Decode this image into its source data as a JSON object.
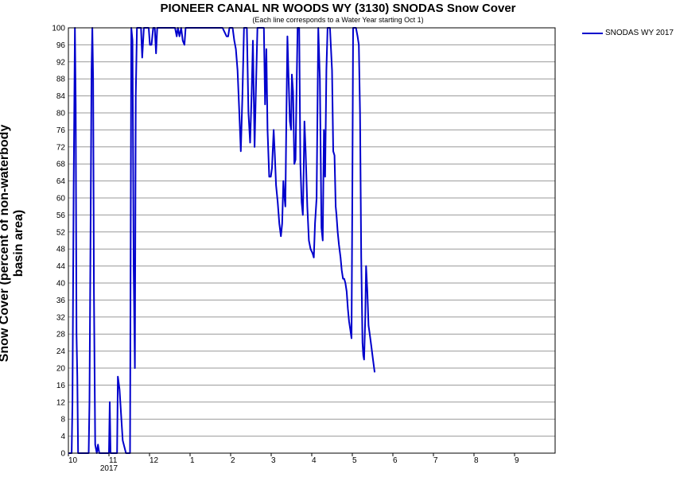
{
  "chart_data": {
    "type": "line",
    "title": "PIONEER CANAL NR WOODS WY (3130) SNODAS Snow Cover",
    "subtitle": "(Each line corresponds to a Water Year starting Oct 1)",
    "ylabel": "Snow Cover (percent of non-waterbody basin area)",
    "xlabel": "",
    "year_label": "2017",
    "year_label_under_month": 1,
    "xlim": [
      0,
      12
    ],
    "ylim": [
      0,
      100
    ],
    "y_ticks": [
      0,
      4,
      8,
      12,
      16,
      20,
      24,
      28,
      32,
      36,
      40,
      44,
      48,
      52,
      56,
      60,
      64,
      68,
      72,
      76,
      80,
      84,
      88,
      92,
      96,
      100
    ],
    "x_ticks": [
      {
        "x": 0,
        "label": "10"
      },
      {
        "x": 1,
        "label": "11"
      },
      {
        "x": 2,
        "label": "12"
      },
      {
        "x": 3,
        "label": "1"
      },
      {
        "x": 4,
        "label": "2"
      },
      {
        "x": 5,
        "label": "3"
      },
      {
        "x": 6,
        "label": "4"
      },
      {
        "x": 7,
        "label": "5"
      },
      {
        "x": 8,
        "label": "6"
      },
      {
        "x": 9,
        "label": "7"
      },
      {
        "x": 10,
        "label": "8"
      },
      {
        "x": 11,
        "label": "9"
      }
    ],
    "grid": "horizontal",
    "legend_position": "top-right",
    "series": [
      {
        "name": "SNODAS WY 2017",
        "color": "#0000cc",
        "points": [
          [
            0.0,
            0
          ],
          [
            0.08,
            0
          ],
          [
            0.1,
            12
          ],
          [
            0.13,
            62
          ],
          [
            0.16,
            100
          ],
          [
            0.18,
            82
          ],
          [
            0.2,
            28
          ],
          [
            0.22,
            18
          ],
          [
            0.24,
            0
          ],
          [
            0.5,
            0
          ],
          [
            0.52,
            12
          ],
          [
            0.55,
            56
          ],
          [
            0.57,
            90
          ],
          [
            0.59,
            100
          ],
          [
            0.61,
            88
          ],
          [
            0.63,
            38
          ],
          [
            0.66,
            2
          ],
          [
            0.7,
            0
          ],
          [
            0.73,
            2
          ],
          [
            0.76,
            0
          ],
          [
            1.0,
            0
          ],
          [
            1.02,
            12
          ],
          [
            1.04,
            0
          ],
          [
            1.2,
            0
          ],
          [
            1.22,
            18
          ],
          [
            1.26,
            15
          ],
          [
            1.3,
            9
          ],
          [
            1.34,
            3
          ],
          [
            1.42,
            0
          ],
          [
            1.52,
            0
          ],
          [
            1.55,
            100
          ],
          [
            1.58,
            97
          ],
          [
            1.61,
            43
          ],
          [
            1.64,
            20
          ],
          [
            1.66,
            84
          ],
          [
            1.69,
            100
          ],
          [
            1.72,
            100
          ],
          [
            1.79,
            100
          ],
          [
            1.82,
            93
          ],
          [
            1.86,
            100
          ],
          [
            1.98,
            100
          ],
          [
            2.01,
            96
          ],
          [
            2.05,
            96
          ],
          [
            2.09,
            100
          ],
          [
            2.13,
            100
          ],
          [
            2.16,
            94
          ],
          [
            2.19,
            100
          ],
          [
            2.6,
            100
          ],
          [
            2.63,
            100
          ],
          [
            2.67,
            98
          ],
          [
            2.7,
            100
          ],
          [
            2.74,
            98
          ],
          [
            2.78,
            100
          ],
          [
            2.82,
            97
          ],
          [
            2.86,
            96
          ],
          [
            2.89,
            100
          ],
          [
            3.8,
            100
          ],
          [
            3.85,
            99
          ],
          [
            3.9,
            98
          ],
          [
            3.94,
            98
          ],
          [
            3.97,
            100
          ],
          [
            4.05,
            100
          ],
          [
            4.09,
            97
          ],
          [
            4.13,
            95
          ],
          [
            4.17,
            90
          ],
          [
            4.21,
            81
          ],
          [
            4.25,
            71
          ],
          [
            4.29,
            84
          ],
          [
            4.33,
            100
          ],
          [
            4.4,
            100
          ],
          [
            4.44,
            80
          ],
          [
            4.48,
            73
          ],
          [
            4.52,
            85
          ],
          [
            4.55,
            97
          ],
          [
            4.59,
            72
          ],
          [
            4.62,
            84
          ],
          [
            4.66,
            100
          ],
          [
            4.74,
            100
          ],
          [
            4.78,
            100
          ],
          [
            4.82,
            100
          ],
          [
            4.85,
            82
          ],
          [
            4.88,
            95
          ],
          [
            4.91,
            76
          ],
          [
            4.95,
            65
          ],
          [
            4.99,
            65
          ],
          [
            5.02,
            67
          ],
          [
            5.06,
            76
          ],
          [
            5.09,
            70
          ],
          [
            5.12,
            63
          ],
          [
            5.16,
            59
          ],
          [
            5.2,
            54
          ],
          [
            5.24,
            51
          ],
          [
            5.27,
            54
          ],
          [
            5.3,
            64
          ],
          [
            5.32,
            61
          ],
          [
            5.35,
            58
          ],
          [
            5.37,
            76
          ],
          [
            5.4,
            98
          ],
          [
            5.43,
            88
          ],
          [
            5.46,
            78
          ],
          [
            5.49,
            76
          ],
          [
            5.51,
            89
          ],
          [
            5.54,
            85
          ],
          [
            5.57,
            68
          ],
          [
            5.6,
            69
          ],
          [
            5.62,
            82
          ],
          [
            5.65,
            100
          ],
          [
            5.69,
            100
          ],
          [
            5.72,
            68
          ],
          [
            5.75,
            59
          ],
          [
            5.78,
            56
          ],
          [
            5.8,
            66
          ],
          [
            5.82,
            78
          ],
          [
            5.85,
            71
          ],
          [
            5.89,
            58
          ],
          [
            5.93,
            50
          ],
          [
            5.97,
            48
          ],
          [
            6.02,
            47
          ],
          [
            6.05,
            46
          ],
          [
            6.08,
            54
          ],
          [
            6.12,
            60
          ],
          [
            6.16,
            100
          ],
          [
            6.2,
            88
          ],
          [
            6.24,
            53
          ],
          [
            6.27,
            50
          ],
          [
            6.3,
            76
          ],
          [
            6.33,
            65
          ],
          [
            6.36,
            90
          ],
          [
            6.39,
            100
          ],
          [
            6.45,
            100
          ],
          [
            6.5,
            90
          ],
          [
            6.53,
            71
          ],
          [
            6.56,
            70
          ],
          [
            6.59,
            58
          ],
          [
            6.61,
            56
          ],
          [
            6.64,
            52
          ],
          [
            6.67,
            49
          ],
          [
            6.71,
            46
          ],
          [
            6.74,
            43
          ],
          [
            6.77,
            41
          ],
          [
            6.8,
            41
          ],
          [
            6.83,
            40
          ],
          [
            6.86,
            38
          ],
          [
            6.89,
            34
          ],
          [
            6.92,
            31
          ],
          [
            6.95,
            29
          ],
          [
            6.98,
            27
          ],
          [
            7.0,
            60
          ],
          [
            7.02,
            100
          ],
          [
            7.05,
            100
          ],
          [
            7.09,
            100
          ],
          [
            7.13,
            98
          ],
          [
            7.16,
            96
          ],
          [
            7.19,
            80
          ],
          [
            7.22,
            46
          ],
          [
            7.25,
            26
          ],
          [
            7.27,
            23
          ],
          [
            7.29,
            22
          ],
          [
            7.32,
            32
          ],
          [
            7.34,
            44
          ],
          [
            7.37,
            38
          ],
          [
            7.4,
            30
          ],
          [
            7.43,
            28
          ],
          [
            7.47,
            25
          ],
          [
            7.51,
            22
          ],
          [
            7.55,
            19
          ]
        ]
      }
    ]
  }
}
